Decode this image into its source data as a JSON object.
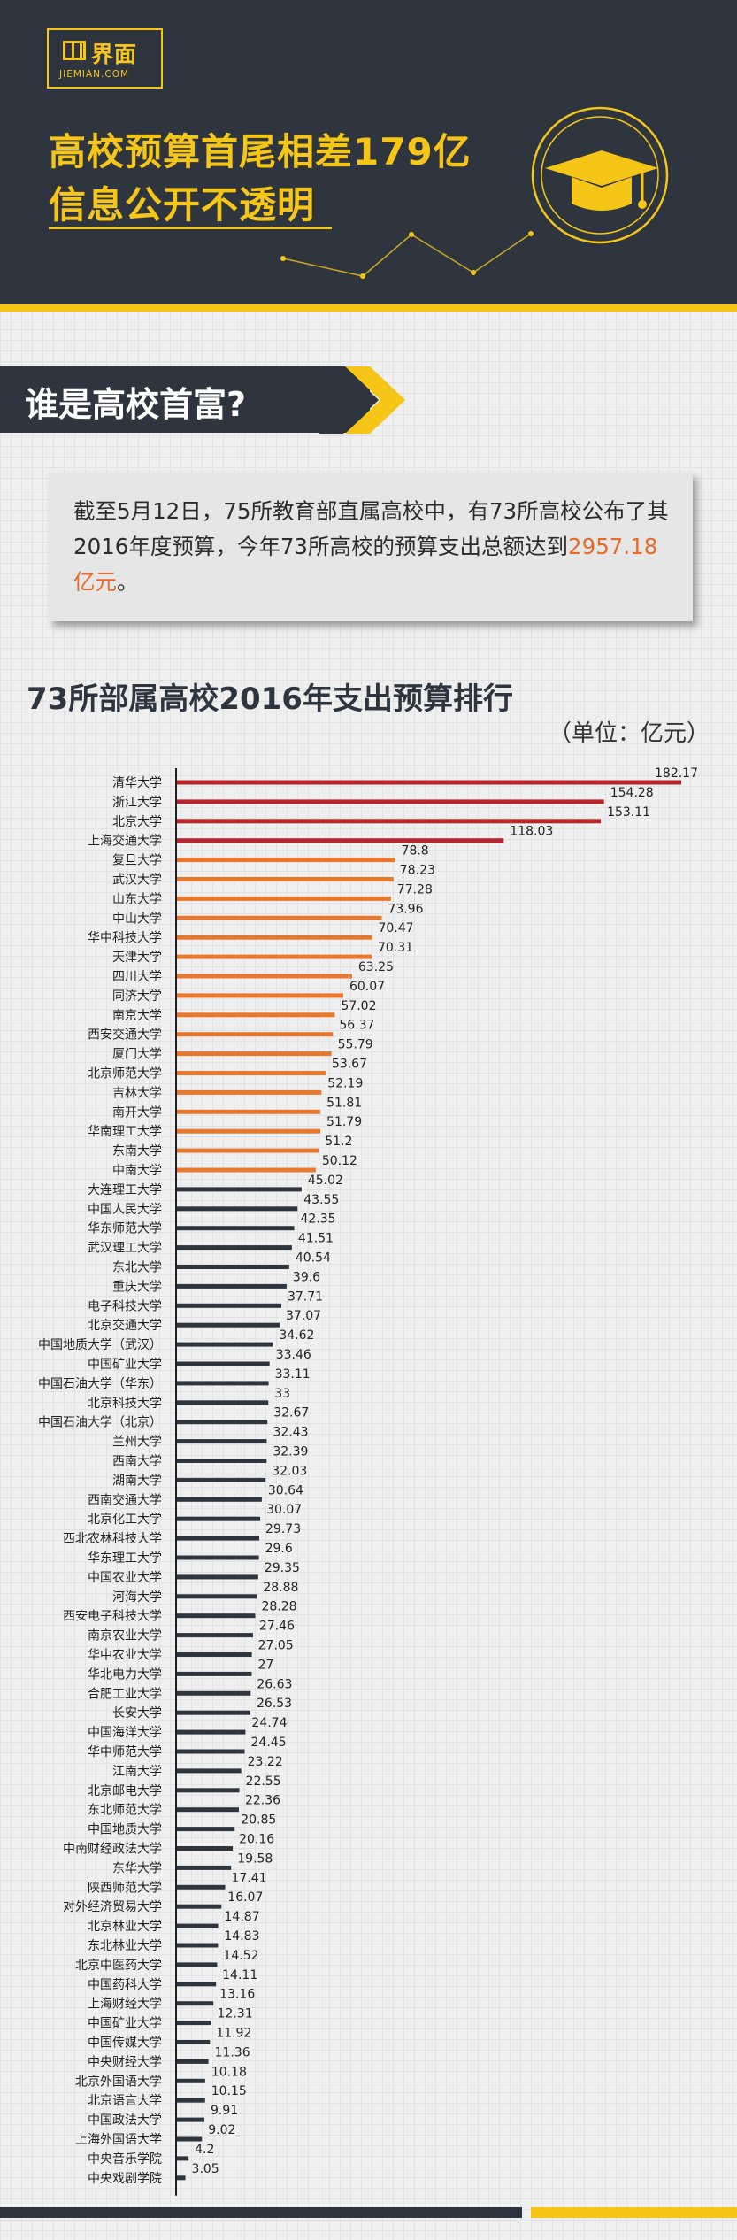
{
  "brand": {
    "logo_cn": "界面",
    "logo_en": "JIEMIAN.COM"
  },
  "headline": {
    "line1": "高校预算首尾相差179亿",
    "line2": "信息公开不透明"
  },
  "section": {
    "title": "谁是高校首富?"
  },
  "summary": {
    "text_before": "截至5月12日，75所教育部直属高校中，有73所高校公布了其2016年度预算，今年73所高校的预算支出总额达到",
    "highlight": "2957.18亿元",
    "text_after": "。"
  },
  "colors": {
    "header_bg": "#2e353f",
    "accent_yellow": "#f5c518",
    "top_tier": "#b5272c",
    "mid_tier": "#e8782e",
    "low_tier": "#2e353f",
    "highlight_text": "#ea6a2a"
  },
  "icons": {
    "cap": "graduation-cap-icon",
    "logo": "jiemian-logo-icon"
  },
  "chart_data": {
    "type": "bar",
    "orientation": "horizontal",
    "title": "73所部属高校2016年支出预算排行",
    "unit_label": "（单位：亿元）",
    "categories": [
      "清华大学",
      "浙江大学",
      "北京大学",
      "上海交通大学",
      "复旦大学",
      "武汉大学",
      "山东大学",
      "中山大学",
      "华中科技大学",
      "天津大学",
      "四川大学",
      "同济大学",
      "南京大学",
      "西安交通大学",
      "厦门大学",
      "北京师范大学",
      "吉林大学",
      "南开大学",
      "华南理工大学",
      "东南大学",
      "中南大学",
      "大连理工大学",
      "中国人民大学",
      "华东师范大学",
      "武汉理工大学",
      "东北大学",
      "重庆大学",
      "电子科技大学",
      "北京交通大学",
      "中国地质大学（武汉）",
      "中国矿业大学",
      "中国石油大学（华东）",
      "北京科技大学",
      "中国石油大学（北京）",
      "兰州大学",
      "西南大学",
      "湖南大学",
      "西南交通大学",
      "北京化工大学",
      "西北农林科技大学",
      "华东理工大学",
      "中国农业大学",
      "河海大学",
      "西安电子科技大学",
      "南京农业大学",
      "华中农业大学",
      "华北电力大学",
      "合肥工业大学",
      "长安大学",
      "中国海洋大学",
      "华中师范大学",
      "江南大学",
      "北京邮电大学",
      "东北师范大学",
      "中国地质大学",
      "中南财经政法大学",
      "东华大学",
      "陕西师范大学",
      "对外经济贸易大学",
      "北京林业大学",
      "东北林业大学",
      "北京中医药大学",
      "中国药科大学",
      "上海财经大学",
      "中国矿业大学",
      "中国传媒大学",
      "中央财经大学",
      "北京外国语大学",
      "北京语言大学",
      "中国政法大学",
      "上海外国语大学",
      "中央音乐学院",
      "中央戏剧学院"
    ],
    "values": [
      182.17,
      154.28,
      153.11,
      118.03,
      78.8,
      78.23,
      77.28,
      73.96,
      70.47,
      70.31,
      63.25,
      60.07,
      57.02,
      56.37,
      55.79,
      53.67,
      52.19,
      51.81,
      51.79,
      51.2,
      50.12,
      45.02,
      43.55,
      42.35,
      41.51,
      40.54,
      39.6,
      37.71,
      37.07,
      34.62,
      33.46,
      33.11,
      33,
      32.67,
      32.43,
      32.39,
      32.03,
      30.64,
      30.07,
      29.73,
      29.6,
      29.35,
      28.88,
      28.28,
      27.46,
      27.05,
      27,
      26.63,
      26.53,
      24.74,
      24.45,
      23.22,
      22.55,
      22.36,
      20.85,
      20.16,
      19.58,
      17.41,
      16.07,
      14.87,
      14.83,
      14.52,
      14.11,
      13.16,
      12.31,
      11.92,
      11.36,
      10.18,
      10.15,
      9.91,
      9.02,
      4.2,
      3.05
    ],
    "value_labels": [
      "182.17",
      "154.28",
      "153.11",
      "118.03",
      "78.8",
      "78.23",
      "77.28",
      "73.96",
      "70.47",
      "70.31",
      "63.25",
      "60.07",
      "57.02",
      "56.37",
      "55.79",
      "53.67",
      "52.19",
      "51.81",
      "51.79",
      "51.2",
      "50.12",
      "45.02",
      "43.55",
      "42.35",
      "41.51",
      "40.54",
      "39.6",
      "37.71",
      "37.07",
      "34.62",
      "33.46",
      "33.11",
      "33",
      "32.67",
      "32.43",
      "32.39",
      "32.03",
      "30.64",
      "30.07",
      "29.73",
      "29.6",
      "29.35",
      "28.88",
      "28.28",
      "27.46",
      "27.05",
      "27",
      "26.63",
      "26.53",
      "24.74",
      "24.45",
      "23.22",
      "22.55",
      "22.36",
      "20.85",
      "20.16",
      "19.58",
      "17.41",
      "16.07",
      "14.87",
      "14.83",
      "14.52",
      "14.11",
      "13.16",
      "12.31",
      "11.92",
      "11.36",
      "10.18",
      "10.15",
      "9.91",
      "9.02",
      "4.2",
      "3.05"
    ],
    "tier_colors": {
      "top": "#b5272c",
      "middle": "#e8782e",
      "rest": "#2e353f"
    },
    "tier_counts": {
      "top": 4,
      "middle": 17
    },
    "xlim": [
      0,
      182.17
    ],
    "grid": false,
    "legend": "none"
  }
}
